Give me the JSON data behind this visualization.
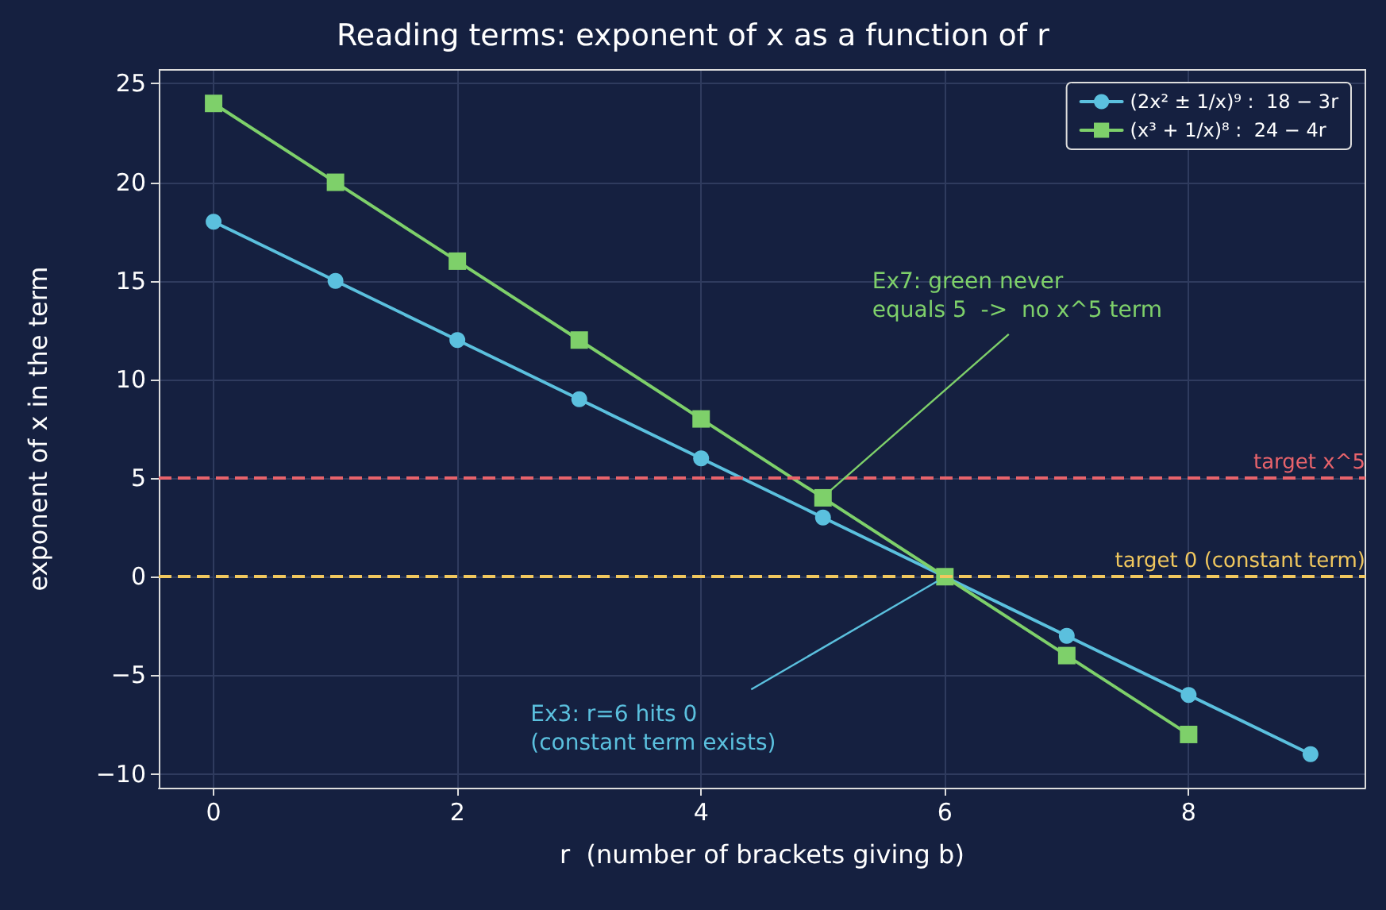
{
  "chart_data": {
    "type": "line",
    "title": "Reading terms: exponent of x as a function of r",
    "xlabel": "r  (number of brackets giving b)",
    "ylabel": "exponent of x in the term",
    "series": [
      {
        "name": "(2x² ± 1/x)⁹ :  18 − 3r",
        "color": "#5bc0de",
        "marker": "circle",
        "x": [
          0,
          1,
          2,
          3,
          4,
          5,
          6,
          7,
          8,
          9
        ],
        "values": [
          18,
          15,
          12,
          9,
          6,
          3,
          0,
          -3,
          -6,
          -9
        ]
      },
      {
        "name": "(x³ + 1/x)⁸ :  24 − 4r",
        "color": "#7ed06a",
        "marker": "square",
        "x": [
          0,
          1,
          2,
          3,
          4,
          5,
          6,
          7,
          8
        ],
        "values": [
          24,
          20,
          16,
          12,
          8,
          4,
          0,
          -4,
          -8
        ]
      }
    ],
    "xlim": [
      -0.45,
      9.45
    ],
    "xticks": [
      0,
      2,
      4,
      6,
      8
    ],
    "ylim": [
      -10.7,
      25.7
    ],
    "yticks": [
      -10,
      -5,
      0,
      5,
      10,
      15,
      20,
      25
    ],
    "ref_lines": [
      {
        "axis": "y",
        "value": 5,
        "label": "target x^5",
        "color": "#e8636b",
        "line_style": "dashed"
      },
      {
        "axis": "y",
        "value": 0,
        "label": "target 0 (constant term)",
        "color": "#f0c75e",
        "line_style": "dashed"
      }
    ],
    "annotations": [
      {
        "text": "Ex7: green never\nequals 5  ->  no x^5 term",
        "x": 5,
        "y": 4
      },
      {
        "text": "Ex3: r=6 hits 0\n(constant term exists)",
        "x": 6,
        "y": 0
      }
    ],
    "grid": true,
    "legend": "top right",
    "line_style": "solid"
  }
}
